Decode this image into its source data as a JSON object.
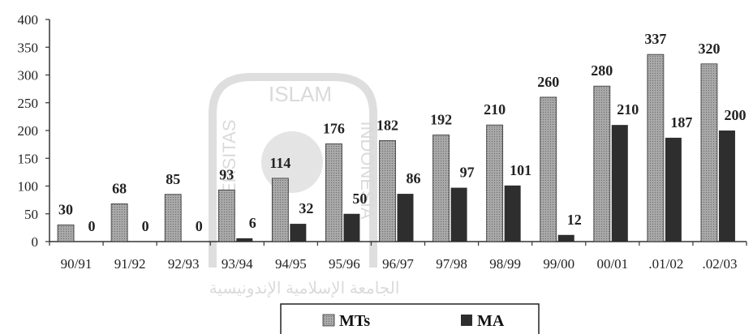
{
  "chart_data": {
    "type": "bar",
    "categories": [
      "90/91",
      "91/92",
      "92/93",
      "93/94",
      "94/95",
      "95/96",
      "96/97",
      "97/98",
      "98/99",
      "99/00",
      "00/01",
      ".01/02",
      ".02/03"
    ],
    "series": [
      {
        "name": "MTs",
        "values": [
          30,
          68,
          85,
          93,
          114,
          176,
          182,
          192,
          210,
          260,
          280,
          337,
          320
        ],
        "color": "#9a9a9a"
      },
      {
        "name": "MA",
        "values": [
          0,
          0,
          0,
          6,
          32,
          50,
          86,
          97,
          101,
          12,
          210,
          187,
          200
        ],
        "color": "#2e2e2e"
      }
    ],
    "ylim": [
      0,
      400
    ],
    "yticks": [
      0,
      50,
      100,
      150,
      200,
      250,
      300,
      350,
      400
    ],
    "ytick_labels": [
      "0",
      "50",
      "100",
      "150",
      "200",
      "250",
      "300",
      "350",
      "400"
    ],
    "legend_position": "bottom-center",
    "grid": false
  },
  "watermark": {
    "top": "ISLAM",
    "left": "UNIVERSITAS",
    "right": "INDONESIA",
    "arabic": "الجامعة الإسلامية الإندونيسية"
  }
}
